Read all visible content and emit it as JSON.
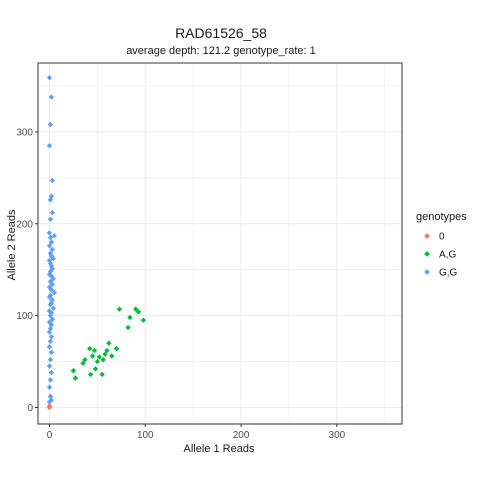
{
  "chart_data": {
    "type": "scatter",
    "title": "RAD61526_58",
    "subtitle": "average depth:  121.2  genotype_rate:  1",
    "xlabel": "Allele 1 Reads",
    "ylabel": "Allele 2 Reads",
    "xlim": [
      -12,
      368
    ],
    "ylim": [
      -18,
      375
    ],
    "x_ticks": [
      0,
      100,
      200,
      300
    ],
    "y_ticks": [
      0,
      100,
      200,
      300
    ],
    "x_tick_labels": [
      "0",
      "100",
      "200",
      "300"
    ],
    "y_tick_labels": [
      "0",
      "100",
      "200",
      "300"
    ],
    "grid": true,
    "legend": {
      "title": "genotypes",
      "position": "right",
      "entries": [
        {
          "label": "0",
          "color": "#F8766D"
        },
        {
          "label": "A,G",
          "color": "#00BA38"
        },
        {
          "label": "G,G",
          "color": "#619CFF"
        }
      ]
    },
    "series": [
      {
        "name": "0",
        "color": "#F8766D",
        "points": [
          [
            0,
            2
          ],
          [
            0,
            0
          ]
        ]
      },
      {
        "name": "A,G",
        "color": "#00BA38",
        "points": [
          [
            25,
            40
          ],
          [
            27,
            32
          ],
          [
            35,
            48
          ],
          [
            37,
            52
          ],
          [
            42,
            64
          ],
          [
            43,
            36
          ],
          [
            45,
            56
          ],
          [
            47,
            62
          ],
          [
            48,
            42
          ],
          [
            50,
            50
          ],
          [
            52,
            55
          ],
          [
            55,
            36
          ],
          [
            56,
            52
          ],
          [
            58,
            58
          ],
          [
            60,
            62
          ],
          [
            62,
            70
          ],
          [
            65,
            56
          ],
          [
            70,
            64
          ],
          [
            73,
            107
          ],
          [
            82,
            87
          ],
          [
            84,
            98
          ],
          [
            90,
            107
          ],
          [
            93,
            104
          ],
          [
            98,
            95
          ]
        ]
      },
      {
        "name": "G,G",
        "color": "#619CFF",
        "points": [
          [
            0,
            359
          ],
          [
            2,
            338
          ],
          [
            1,
            308
          ],
          [
            0,
            285
          ],
          [
            3,
            247
          ],
          [
            2,
            230
          ],
          [
            1,
            226
          ],
          [
            3,
            212
          ],
          [
            1,
            205
          ],
          [
            5,
            187
          ],
          [
            0,
            190
          ],
          [
            1,
            185
          ],
          [
            2,
            180
          ],
          [
            0,
            176
          ],
          [
            3,
            172
          ],
          [
            1,
            168
          ],
          [
            2,
            165
          ],
          [
            4,
            162
          ],
          [
            0,
            160
          ],
          [
            1,
            157
          ],
          [
            2,
            154
          ],
          [
            3,
            151
          ],
          [
            1,
            148
          ],
          [
            0,
            145
          ],
          [
            2,
            143
          ],
          [
            4,
            140
          ],
          [
            1,
            137
          ],
          [
            3,
            134
          ],
          [
            0,
            131
          ],
          [
            2,
            128
          ],
          [
            5,
            125
          ],
          [
            1,
            122
          ],
          [
            0,
            120
          ],
          [
            3,
            117
          ],
          [
            2,
            114
          ],
          [
            1,
            112
          ],
          [
            4,
            108
          ],
          [
            0,
            105
          ],
          [
            2,
            103
          ],
          [
            1,
            100
          ],
          [
            3,
            96
          ],
          [
            0,
            93
          ],
          [
            2,
            90
          ],
          [
            1,
            86
          ],
          [
            0,
            82
          ],
          [
            2,
            77
          ],
          [
            1,
            72
          ],
          [
            0,
            66
          ],
          [
            2,
            60
          ],
          [
            1,
            52
          ],
          [
            0,
            45
          ],
          [
            2,
            38
          ],
          [
            1,
            30
          ],
          [
            0,
            22
          ],
          [
            1,
            12
          ],
          [
            2,
            8
          ],
          [
            0,
            6
          ]
        ]
      }
    ]
  }
}
